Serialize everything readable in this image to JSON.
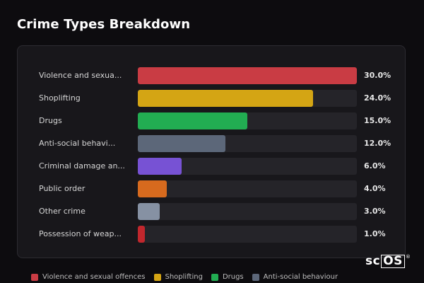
{
  "title": "Crime Types Breakdown",
  "chart_data": {
    "type": "bar",
    "orientation": "horizontal",
    "title": "Crime Types Breakdown",
    "xlim": [
      0,
      30
    ],
    "categories": [
      "Violence and sexua...",
      "Shoplifting",
      "Drugs",
      "Anti-social behavi...",
      "Criminal damage an...",
      "Public order",
      "Other crime",
      "Possession of weap..."
    ],
    "values": [
      30.0,
      24.0,
      15.0,
      12.0,
      6.0,
      4.0,
      3.0,
      1.0
    ],
    "value_labels": [
      "30.0%",
      "24.0%",
      "15.0%",
      "12.0%",
      "6.0%",
      "4.0%",
      "3.0%",
      "1.0%"
    ],
    "colors": [
      "#c93c44",
      "#d4a514",
      "#22ad52",
      "#5c6779",
      "#7752d4",
      "#d76a1e",
      "#8691a3",
      "#c1272d"
    ],
    "legend_placement": "bottom",
    "legend": [
      {
        "label": "Violence and sexual offences",
        "color": "#c93c44"
      },
      {
        "label": "Shoplifting",
        "color": "#d4a514"
      },
      {
        "label": "Drugs",
        "color": "#22ad52"
      },
      {
        "label": "Anti-social behaviour",
        "color": "#5c6779"
      }
    ]
  },
  "logo": {
    "text_plain": "sc",
    "text_boxed": "OS",
    "mark": "®"
  }
}
